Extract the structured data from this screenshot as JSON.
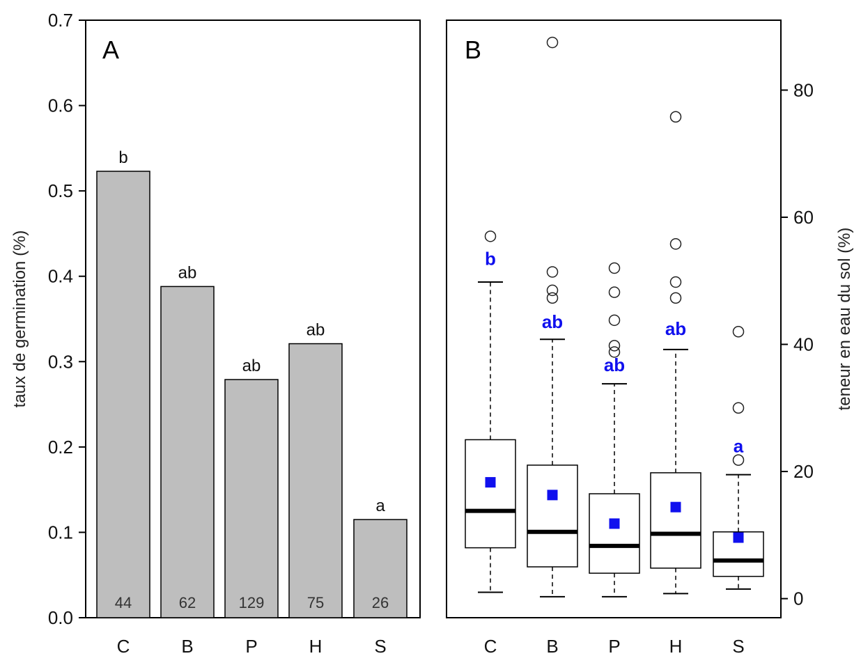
{
  "chart_data": [
    {
      "type": "bar",
      "panel_label": "A",
      "ylabel": "taux de germination (%)",
      "ylim": [
        0,
        0.7
      ],
      "yticks": [
        "0.0",
        "0.1",
        "0.2",
        "0.3",
        "0.4",
        "0.5",
        "0.6",
        "0.7"
      ],
      "categories": [
        "C",
        "B",
        "P",
        "H",
        "S"
      ],
      "values": [
        0.523,
        0.388,
        0.279,
        0.321,
        0.115
      ],
      "group_letters": [
        "b",
        "ab",
        "ab",
        "ab",
        "a"
      ],
      "n_labels": [
        "44",
        "62",
        "129",
        "75",
        "26"
      ],
      "grid": false,
      "colors": {
        "bar": "#bebebe",
        "stroke": "#000000"
      }
    },
    {
      "type": "box",
      "panel_label": "B",
      "ylabel": "teneur en eau du sol (%)",
      "ylim": [
        -3,
        91
      ],
      "yticks": [
        "0",
        "20",
        "40",
        "60",
        "80"
      ],
      "y_axis_side": "right",
      "categories": [
        "C",
        "B",
        "P",
        "H",
        "S"
      ],
      "boxes": [
        {
          "whisker_low": 1.0,
          "q1": 8.0,
          "median": 13.8,
          "q3": 25.0,
          "whisker_high": 49.8,
          "mean": 18.3,
          "outliers": [
            57.0
          ]
        },
        {
          "whisker_low": 0.3,
          "q1": 5.0,
          "median": 10.5,
          "q3": 21.0,
          "whisker_high": 40.8,
          "mean": 16.3,
          "outliers": [
            51.4,
            48.5,
            47.3,
            87.5
          ]
        },
        {
          "whisker_low": 0.3,
          "q1": 4.0,
          "median": 8.3,
          "q3": 16.5,
          "whisker_high": 33.8,
          "mean": 11.8,
          "outliers": [
            52.0,
            48.2,
            43.8,
            39.8,
            38.8
          ]
        },
        {
          "whisker_low": 0.8,
          "q1": 4.8,
          "median": 10.2,
          "q3": 19.8,
          "whisker_high": 39.2,
          "mean": 14.4,
          "outliers": [
            55.8,
            49.8,
            47.3,
            75.8
          ]
        },
        {
          "whisker_low": 1.5,
          "q1": 3.5,
          "median": 6.0,
          "q3": 10.5,
          "whisker_high": 19.5,
          "mean": 9.6,
          "outliers": [
            42.0,
            30.0,
            21.8
          ]
        }
      ],
      "group_letters": [
        "b",
        "ab",
        "ab",
        "ab",
        "a"
      ],
      "letter_y": [
        52.5,
        42.6,
        35.8,
        41.5,
        23.0
      ],
      "grid": false,
      "colors": {
        "mean_marker": "#1010ee",
        "letters": "#1010ee",
        "median": "#000000"
      }
    }
  ]
}
